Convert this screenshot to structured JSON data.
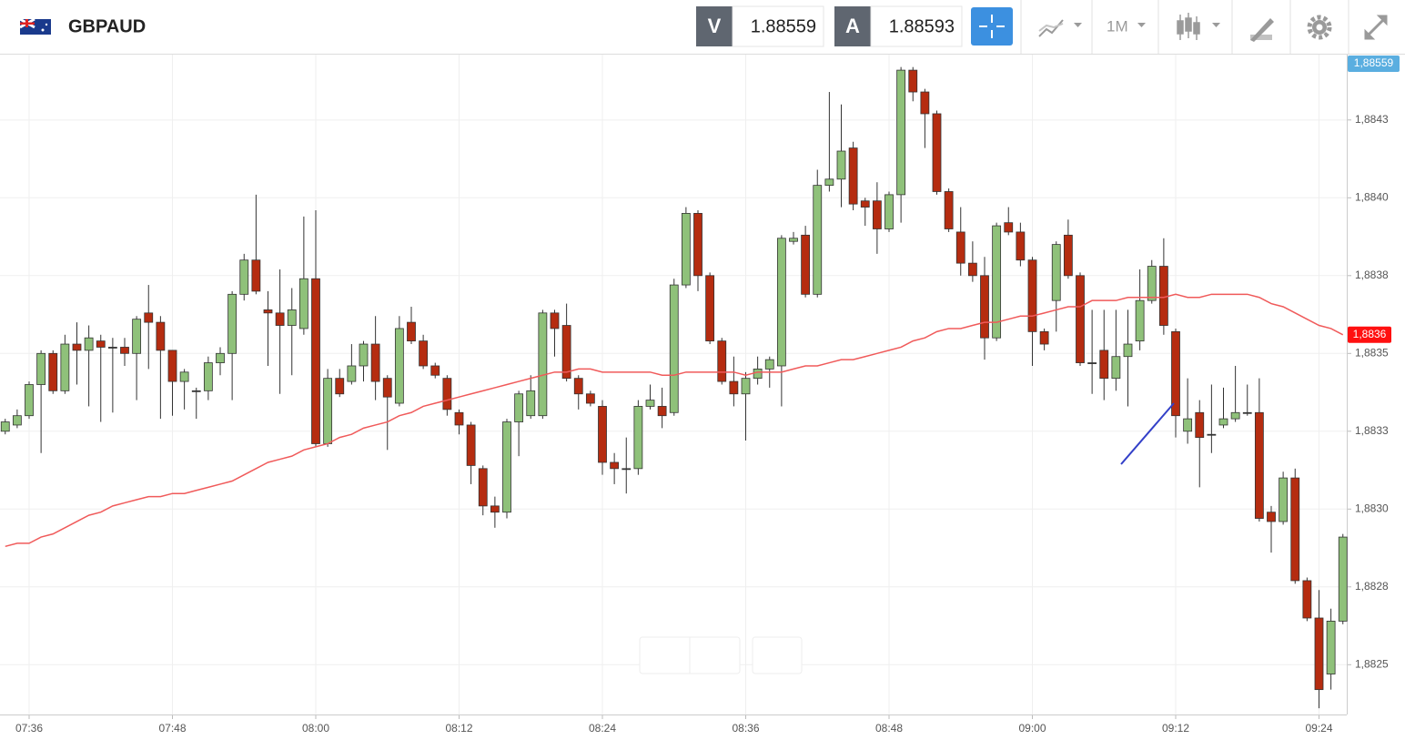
{
  "header": {
    "symbol": "GBPAUD",
    "sell_label": "V",
    "sell_price": "1.88559",
    "buy_label": "A",
    "buy_price": "1.88593",
    "timeframe": "1M"
  },
  "chart_data": {
    "type": "candlestick",
    "categories": [
      null,
      null,
      "07:36",
      null,
      null,
      null,
      null,
      null,
      null,
      null,
      null,
      null,
      null,
      null,
      "07:48",
      null,
      null,
      null,
      null,
      null,
      null,
      null,
      null,
      null,
      null,
      null,
      "08:00",
      null,
      null,
      null,
      null,
      null,
      null,
      null,
      null,
      null,
      null,
      null,
      "08:12",
      null,
      null,
      null,
      null,
      null,
      null,
      null,
      null,
      null,
      null,
      null,
      "08:24",
      null,
      null,
      null,
      null,
      null,
      null,
      null,
      null,
      null,
      null,
      null,
      "08:36",
      null,
      null,
      null,
      null,
      null,
      null,
      null,
      null,
      null,
      null,
      null,
      "08:48",
      null,
      null,
      null,
      null,
      null,
      null,
      null,
      null,
      null,
      null,
      null,
      "09:00",
      null,
      null,
      null,
      null,
      null,
      null,
      null,
      null,
      null,
      null,
      null,
      "09:12",
      null,
      null,
      null,
      null,
      null,
      null,
      null,
      null,
      null,
      null,
      null,
      "09:24",
      null,
      null
    ],
    "open": [
      1.88325,
      1.88327,
      1.8833,
      1.8834,
      1.8835,
      1.88338,
      1.88353,
      1.88351,
      1.88354,
      1.88352,
      1.88352,
      1.8835,
      1.88363,
      1.8836,
      1.88351,
      1.88341,
      1.88338,
      1.88338,
      1.88347,
      1.8835,
      1.88369,
      1.8838,
      1.88364,
      1.88363,
      1.88359,
      1.88358,
      1.88374,
      1.88321,
      1.88342,
      1.88341,
      1.88346,
      1.88353,
      1.88342,
      1.88334,
      1.8836,
      1.88354,
      1.88346,
      1.88342,
      1.88331,
      1.88327,
      1.88313,
      1.88301,
      1.88299,
      1.88328,
      1.8833,
      1.8833,
      1.88363,
      1.88359,
      1.88342,
      1.88337,
      1.88333,
      1.88315,
      1.88313,
      1.88313,
      1.88333,
      1.88333,
      1.88331,
      1.88372,
      1.88395,
      1.88375,
      1.88354,
      1.88341,
      1.88337,
      1.88342,
      1.88345,
      1.88346,
      1.88386,
      1.88388,
      1.88369,
      1.88404,
      1.88406,
      1.88416,
      1.88399,
      1.88399,
      1.8839,
      1.88401,
      1.88441,
      1.88434,
      1.88427,
      1.88402,
      1.88389,
      1.88379,
      1.88375,
      1.88355,
      1.88392,
      1.88389,
      1.8838,
      1.88357,
      1.88367,
      1.88388,
      1.88375,
      1.88347,
      1.88351,
      1.88342,
      1.88349,
      1.88354,
      1.88367,
      1.88378,
      1.88357,
      1.88325,
      1.88331,
      1.88324,
      1.88327,
      1.88329,
      1.88331,
      1.88331,
      1.88299,
      1.88296,
      1.8831,
      1.88277,
      1.88265,
      1.88247,
      1.88264
    ],
    "high": [
      1.88329,
      1.88332,
      1.88341,
      1.88351,
      1.88351,
      1.88356,
      1.8836,
      1.88359,
      1.88356,
      1.88355,
      1.88355,
      1.88362,
      1.88372,
      1.88362,
      1.88351,
      1.88345,
      1.88339,
      1.88349,
      1.88352,
      1.8837,
      1.88382,
      1.88401,
      1.8837,
      1.88377,
      1.88371,
      1.88394,
      1.88396,
      1.88345,
      1.88345,
      1.88353,
      1.88354,
      1.88362,
      1.88343,
      1.88362,
      1.88365,
      1.88356,
      1.88347,
      1.88343,
      1.88332,
      1.88328,
      1.88314,
      1.88304,
      1.88329,
      1.88338,
      1.88343,
      1.88364,
      1.88364,
      1.88366,
      1.88343,
      1.88338,
      1.88335,
      1.88318,
      1.88323,
      1.88335,
      1.8834,
      1.88339,
      1.88374,
      1.88397,
      1.88396,
      1.88376,
      1.88355,
      1.88349,
      1.88344,
      1.88349,
      1.88349,
      1.88388,
      1.88389,
      1.88391,
      1.88409,
      1.88434,
      1.8843,
      1.88418,
      1.884,
      1.88405,
      1.88402,
      1.88442,
      1.88442,
      1.88435,
      1.88428,
      1.88403,
      1.88397,
      1.88386,
      1.88381,
      1.88392,
      1.88397,
      1.88392,
      1.88381,
      1.88358,
      1.88386,
      1.88393,
      1.88376,
      1.88364,
      1.88364,
      1.88364,
      1.88364,
      1.88377,
      1.8838,
      1.88387,
      1.88358,
      1.88342,
      1.88335,
      1.8834,
      1.88339,
      1.88346,
      1.8834,
      1.88342,
      1.88301,
      1.88312,
      1.88313,
      1.88278,
      1.88274,
      1.88268,
      1.88292
    ],
    "low": [
      1.88324,
      1.88326,
      1.88329,
      1.88318,
      1.88337,
      1.88337,
      1.8834,
      1.88333,
      1.88328,
      1.88331,
      1.88346,
      1.88335,
      1.88345,
      1.88329,
      1.8833,
      1.88332,
      1.88329,
      1.88335,
      1.88343,
      1.88335,
      1.88367,
      1.88369,
      1.88346,
      1.88337,
      1.88343,
      1.88356,
      1.8832,
      1.8832,
      1.88336,
      1.8834,
      1.88341,
      1.88335,
      1.88319,
      1.88333,
      1.88353,
      1.88345,
      1.88342,
      1.8833,
      1.88324,
      1.88308,
      1.88298,
      1.88294,
      1.88297,
      1.88317,
      1.88329,
      1.88329,
      1.88349,
      1.88341,
      1.88332,
      1.88333,
      1.88311,
      1.88308,
      1.88305,
      1.88311,
      1.88332,
      1.88326,
      1.8833,
      1.88371,
      1.8837,
      1.88353,
      1.8834,
      1.88333,
      1.88322,
      1.8834,
      1.88339,
      1.88333,
      1.88385,
      1.88368,
      1.88368,
      1.88402,
      1.88397,
      1.88396,
      1.88391,
      1.88382,
      1.88389,
      1.88392,
      1.88431,
      1.88416,
      1.88401,
      1.88389,
      1.88375,
      1.88373,
      1.88348,
      1.88354,
      1.88388,
      1.88378,
      1.88346,
      1.88351,
      1.88357,
      1.88374,
      1.88346,
      1.88337,
      1.88335,
      1.88338,
      1.88333,
      1.88351,
      1.88366,
      1.88356,
      1.88323,
      1.88321,
      1.88307,
      1.88318,
      1.88326,
      1.88328,
      1.8833,
      1.88296,
      1.88286,
      1.88295,
      1.88276,
      1.88264,
      1.88236,
      1.88242,
      1.88263
    ],
    "close": [
      1.88328,
      1.8833,
      1.8834,
      1.8835,
      1.88338,
      1.88353,
      1.88351,
      1.88355,
      1.88352,
      1.88352,
      1.8835,
      1.88361,
      1.8836,
      1.88351,
      1.88341,
      1.88344,
      1.88338,
      1.88347,
      1.8835,
      1.88369,
      1.8838,
      1.8837,
      1.88363,
      1.88359,
      1.88364,
      1.88374,
      1.88321,
      1.88342,
      1.88337,
      1.88346,
      1.88353,
      1.88341,
      1.88336,
      1.88358,
      1.88354,
      1.88346,
      1.88343,
      1.88332,
      1.88327,
      1.88314,
      1.88301,
      1.88299,
      1.88328,
      1.88337,
      1.88338,
      1.88363,
      1.88358,
      1.88342,
      1.88337,
      1.88334,
      1.88315,
      1.88313,
      1.88313,
      1.88333,
      1.88335,
      1.8833,
      1.88372,
      1.88395,
      1.88375,
      1.88354,
      1.88341,
      1.88337,
      1.88342,
      1.88345,
      1.88348,
      1.88387,
      1.88387,
      1.88369,
      1.88404,
      1.88406,
      1.88415,
      1.88398,
      1.88397,
      1.8839,
      1.88401,
      1.88441,
      1.88434,
      1.88427,
      1.88402,
      1.8839,
      1.88379,
      1.88375,
      1.88355,
      1.88391,
      1.88389,
      1.8838,
      1.88357,
      1.88353,
      1.88385,
      1.88375,
      1.88347,
      1.88347,
      1.88342,
      1.88349,
      1.88353,
      1.88367,
      1.88378,
      1.88359,
      1.8833,
      1.88329,
      1.88323,
      1.88324,
      1.88329,
      1.88331,
      1.88331,
      1.88297,
      1.88296,
      1.8831,
      1.88277,
      1.88265,
      1.88242,
      1.88264,
      1.88291
    ],
    "up_color": "#8fc17a",
    "down_color": "#b52c10",
    "flat_color": "#333333",
    "moving_average": {
      "color": "#f05a5a",
      "label": "1,8836",
      "label_color": "#ff1010",
      "values": [
        1.88288,
        1.88289,
        1.88289,
        1.88291,
        1.88292,
        1.88294,
        1.88296,
        1.88298,
        1.88299,
        1.88301,
        1.88302,
        1.88303,
        1.88304,
        1.88304,
        1.88305,
        1.88305,
        1.88306,
        1.88307,
        1.88308,
        1.88309,
        1.88311,
        1.88313,
        1.88315,
        1.88316,
        1.88317,
        1.88319,
        1.8832,
        1.88321,
        1.88323,
        1.88324,
        1.88326,
        1.88327,
        1.88328,
        1.8833,
        1.88331,
        1.88333,
        1.88334,
        1.88335,
        1.88336,
        1.88337,
        1.88338,
        1.88339,
        1.8834,
        1.88341,
        1.88342,
        1.88343,
        1.88344,
        1.88344,
        1.88345,
        1.88345,
        1.88344,
        1.88344,
        1.88344,
        1.88344,
        1.88344,
        1.88343,
        1.88343,
        1.88344,
        1.88344,
        1.88344,
        1.88344,
        1.88344,
        1.88343,
        1.88344,
        1.88344,
        1.88344,
        1.88345,
        1.88346,
        1.88346,
        1.88347,
        1.88348,
        1.88348,
        1.88349,
        1.8835,
        1.88351,
        1.88352,
        1.88354,
        1.88355,
        1.88357,
        1.88358,
        1.88358,
        1.88359,
        1.8836,
        1.8836,
        1.88361,
        1.88362,
        1.88362,
        1.88363,
        1.88364,
        1.88365,
        1.88365,
        1.88367,
        1.88367,
        1.88367,
        1.88368,
        1.88368,
        1.88368,
        1.88368,
        1.88369,
        1.88368,
        1.88368,
        1.88369,
        1.88369,
        1.88369,
        1.88369,
        1.88368,
        1.88366,
        1.88365,
        1.88363,
        1.88361,
        1.88359,
        1.88358,
        1.88356
      ]
    },
    "price_label": "1,88559",
    "price_label_color": "#5aaee0",
    "ylim": [
      1.88234,
      1.88446
    ],
    "yticks": [
      {
        "value": 1.88425,
        "label": "1,8843"
      },
      {
        "value": 1.884,
        "label": "1,8840"
      },
      {
        "value": 1.88375,
        "label": "1,8838"
      },
      {
        "value": 1.8835,
        "label": "1,8835"
      },
      {
        "value": 1.88325,
        "label": "1,8833"
      },
      {
        "value": 1.883,
        "label": "1,8830"
      },
      {
        "value": 1.88275,
        "label": "1,8828"
      },
      {
        "value": 1.8825,
        "label": "1,8825"
      }
    ],
    "grid": true
  }
}
